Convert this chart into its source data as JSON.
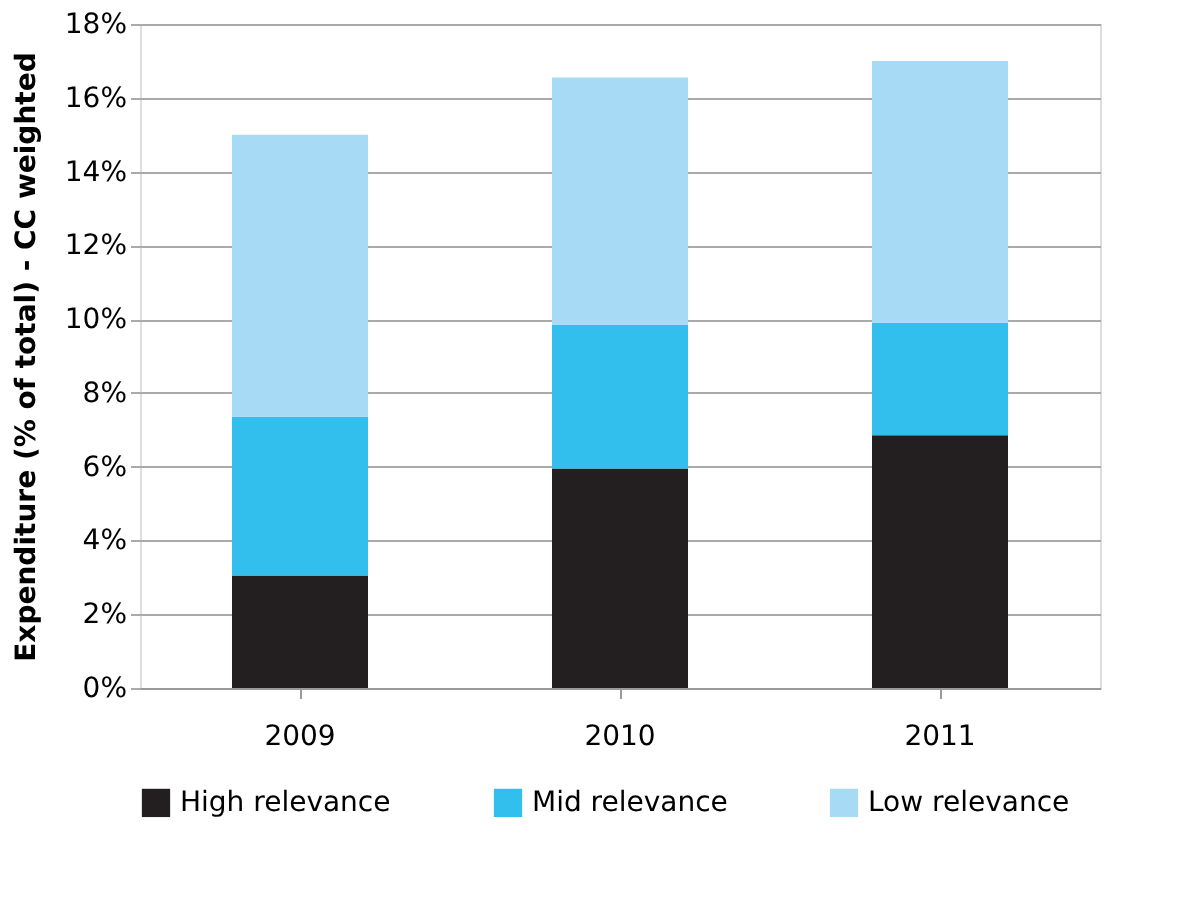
{
  "chart_data": {
    "type": "bar",
    "stacked": true,
    "ylabel": "Expenditure (% of total) - CC weighted",
    "categories": [
      "2009",
      "2010",
      "2011"
    ],
    "series": [
      {
        "name": "High relevance",
        "color": "#231f20",
        "values": [
          3.05,
          5.95,
          6.85
        ]
      },
      {
        "name": "Mid relevance",
        "color": "#33bfed",
        "values": [
          4.3,
          3.9,
          3.05
        ]
      },
      {
        "name": "Low relevance",
        "color": "#a6daf5",
        "values": [
          7.65,
          6.7,
          7.1
        ]
      }
    ],
    "ylim": [
      0,
      18
    ],
    "yticks": [
      {
        "value": 0,
        "label": "0%"
      },
      {
        "value": 2,
        "label": "2%"
      },
      {
        "value": 4,
        "label": "4%"
      },
      {
        "value": 6,
        "label": "6%"
      },
      {
        "value": 8,
        "label": "8%"
      },
      {
        "value": 10,
        "label": "10%"
      },
      {
        "value": 12,
        "label": "12%"
      },
      {
        "value": 14,
        "label": "14%"
      },
      {
        "value": 16,
        "label": "16%"
      },
      {
        "value": 18,
        "label": "18%"
      }
    ],
    "grid": "y",
    "legend": "bottom"
  }
}
